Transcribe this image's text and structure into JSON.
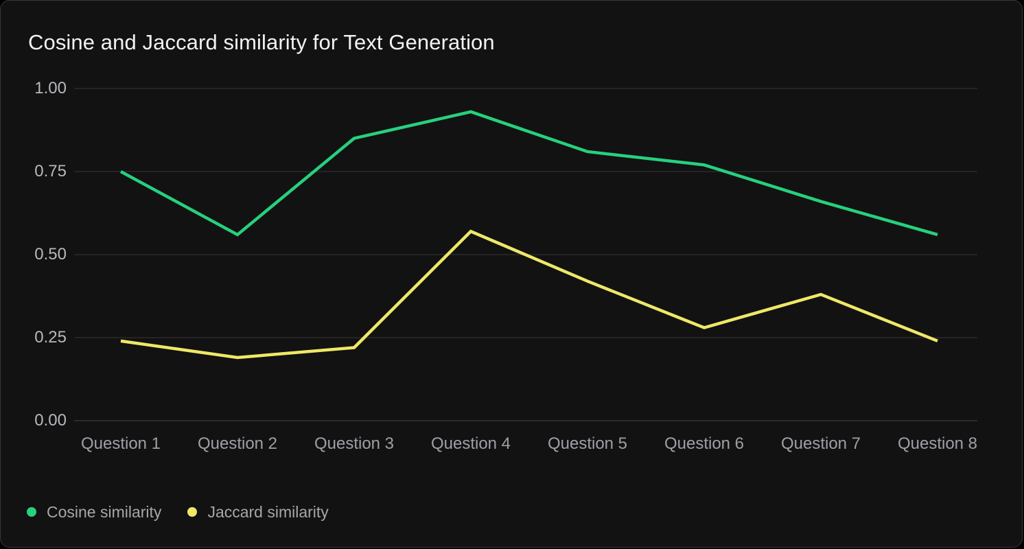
{
  "header": {
    "title": "Cosine and Jaccard similarity for Text Generation"
  },
  "chart_data": {
    "type": "line",
    "title": "Cosine and Jaccard similarity for Text Generation",
    "categories": [
      "Question 1",
      "Question 2",
      "Question 3",
      "Question 4",
      "Question 5",
      "Question 6",
      "Question 7",
      "Question 8"
    ],
    "series": [
      {
        "name": "Cosine similarity",
        "color": "#27d07e",
        "values": [
          0.75,
          0.56,
          0.85,
          0.93,
          0.81,
          0.77,
          0.66,
          0.56
        ]
      },
      {
        "name": "Jaccard similarity",
        "color": "#eee868",
        "values": [
          0.24,
          0.19,
          0.22,
          0.57,
          0.42,
          0.28,
          0.38,
          0.24
        ]
      }
    ],
    "xlabel": "",
    "ylabel": "",
    "ylim": [
      0.0,
      1.0
    ],
    "y_ticks": [
      "1.00",
      "0.75",
      "0.50",
      "0.25",
      "0.00"
    ],
    "grid": "horizontal",
    "legend_position": "bottom-left"
  },
  "colors": {
    "card_background": "#121212",
    "page_background": "#000000",
    "gridline": "#35353b",
    "baseline": "#46464c",
    "title_text": "#f2f2f2",
    "y_tick_text": "#b8b8be",
    "x_tick_text": "#9ea0a6",
    "legend_text": "#a6a6ac",
    "cosine_line": "#27d07e",
    "jaccard_line": "#eee868"
  }
}
